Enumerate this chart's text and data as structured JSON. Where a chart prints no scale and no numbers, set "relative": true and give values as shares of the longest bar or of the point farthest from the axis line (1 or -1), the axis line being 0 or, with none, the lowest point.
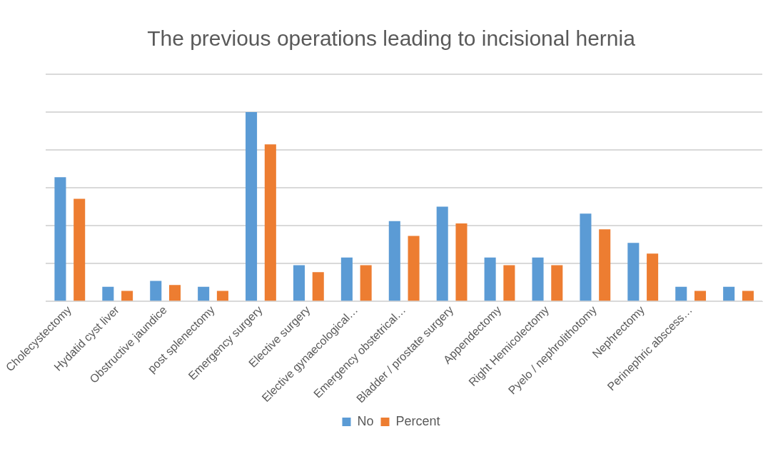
{
  "chart_data": {
    "type": "bar",
    "title": "The previous operations leading to incisional hernia",
    "relative": true,
    "grid": "y",
    "legend": "bottom",
    "categories": [
      "Cholecystectomy",
      "Hydatid cyst liver",
      "Obstructive jaundice",
      "post splenectomy",
      "Emergency surgery",
      "Elective surgery",
      "Elective gynaecological…",
      "Emergency obstetrical…",
      "Bladder / prostate surgery",
      "Appendectomy",
      "Right Hemicolectomy",
      "Pyelo / nephrolithotomy",
      "Nephrectomy",
      "Perinephric abscess…",
      null
    ],
    "series": [
      {
        "name": "No",
        "color": "#5b9bd5",
        "values": [
          0.656,
          0.077,
          0.108,
          0.077,
          1,
          0.191,
          0.232,
          0.424,
          0.501,
          0.232,
          0.232,
          0.464,
          0.309,
          0.077,
          0.077
        ]
      },
      {
        "name": "Percent",
        "color": "#ed7d31",
        "values": [
          0.542,
          0.056,
          0.087,
          0.056,
          0.83,
          0.155,
          0.191,
          0.346,
          0.412,
          0.191,
          0.191,
          0.381,
          0.253,
          0.056,
          0.056
        ]
      }
    ]
  }
}
